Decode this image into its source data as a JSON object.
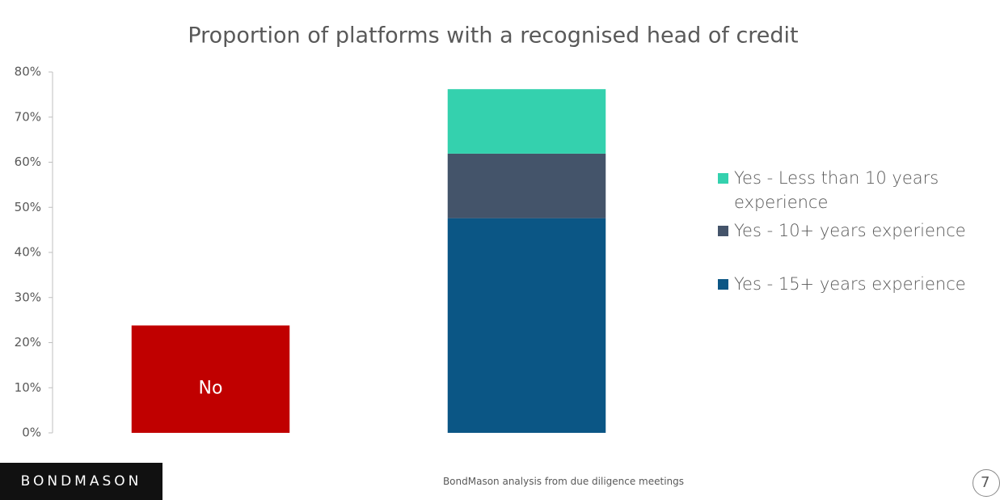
{
  "chart_data": {
    "type": "stacked_bar",
    "title": "Proportion of platforms with a recognised head of credit",
    "categories": [
      null,
      null
    ],
    "series": [
      {
        "name": "No",
        "color": "#c00000",
        "values": [
          23.8,
          null
        ],
        "show_in_legend": false,
        "label_inside": true
      },
      {
        "name": "Yes - 15+ years experience",
        "color": "#0b5685",
        "values": [
          null,
          47.6
        ],
        "show_in_legend": true,
        "label_inside": false
      },
      {
        "name": "Yes - 10+ years experience",
        "color": "#44546a",
        "values": [
          null,
          14.3
        ],
        "show_in_legend": true,
        "label_inside": false
      },
      {
        "name": "Yes - Less than 10 years experience",
        "color": "#34d1ae",
        "values": [
          null,
          14.3
        ],
        "show_in_legend": true,
        "label_inside": false
      }
    ],
    "ylim": [
      0,
      80
    ],
    "yticks": [
      {
        "value": 0,
        "label": "0%"
      },
      {
        "value": 10,
        "label": "10%"
      },
      {
        "value": 20,
        "label": "20%"
      },
      {
        "value": 30,
        "label": "30%"
      },
      {
        "value": 40,
        "label": "40%"
      },
      {
        "value": 50,
        "label": "50%"
      },
      {
        "value": 60,
        "label": "60%"
      },
      {
        "value": 70,
        "label": "70%"
      },
      {
        "value": 80,
        "label": "80%"
      }
    ],
    "grid": false,
    "legend": "right"
  },
  "logo": "BONDMASON",
  "source": "BondMason analysis from due diligence meetings",
  "page_number": "7"
}
